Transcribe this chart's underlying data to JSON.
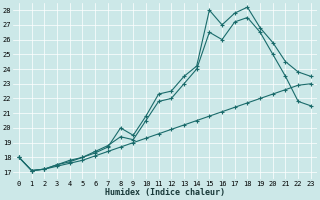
{
  "xlabel": "Humidex (Indice chaleur)",
  "bg_color": "#cce8e8",
  "line_color": "#1a6b6b",
  "marker": "+",
  "xlim_min": -0.5,
  "xlim_max": 23.5,
  "ylim_min": 16.5,
  "ylim_max": 28.5,
  "line1_x": [
    0,
    1,
    2,
    3,
    4,
    5,
    6,
    7,
    8,
    9,
    10,
    11,
    12,
    13,
    14,
    15,
    16,
    17,
    18,
    19,
    20,
    21,
    22,
    23
  ],
  "line1_y": [
    18.0,
    17.1,
    17.2,
    17.4,
    17.6,
    17.8,
    18.1,
    18.4,
    18.7,
    19.0,
    19.3,
    19.6,
    19.9,
    20.2,
    20.5,
    20.8,
    21.1,
    21.4,
    21.7,
    22.0,
    22.3,
    22.6,
    22.9,
    23.0
  ],
  "line2_x": [
    0,
    1,
    2,
    3,
    4,
    5,
    6,
    7,
    8,
    9,
    10,
    11,
    12,
    13,
    14,
    15,
    16,
    17,
    18,
    19,
    20,
    21,
    22,
    23
  ],
  "line2_y": [
    18.0,
    17.1,
    17.2,
    17.5,
    17.7,
    18.0,
    18.4,
    18.8,
    19.4,
    19.2,
    20.5,
    21.8,
    22.0,
    23.0,
    24.0,
    26.5,
    26.0,
    27.2,
    27.5,
    26.5,
    25.0,
    23.5,
    21.8,
    21.5
  ],
  "line3_x": [
    0,
    1,
    2,
    3,
    4,
    5,
    6,
    7,
    8,
    9,
    10,
    11,
    12,
    13,
    14,
    15,
    16,
    17,
    18,
    19,
    20,
    21,
    22,
    23
  ],
  "line3_y": [
    18.0,
    17.1,
    17.2,
    17.5,
    17.8,
    18.0,
    18.3,
    18.7,
    20.0,
    19.5,
    20.8,
    22.3,
    22.5,
    23.5,
    24.2,
    28.0,
    27.0,
    27.8,
    28.2,
    26.8,
    25.8,
    24.5,
    23.8,
    23.5
  ],
  "xticks": [
    0,
    1,
    2,
    3,
    4,
    5,
    6,
    7,
    8,
    9,
    10,
    11,
    12,
    13,
    14,
    15,
    16,
    17,
    18,
    19,
    20,
    21,
    22,
    23
  ],
  "yticks": [
    17,
    18,
    19,
    20,
    21,
    22,
    23,
    24,
    25,
    26,
    27,
    28
  ],
  "xlabel_fontsize": 6,
  "tick_fontsize": 5
}
